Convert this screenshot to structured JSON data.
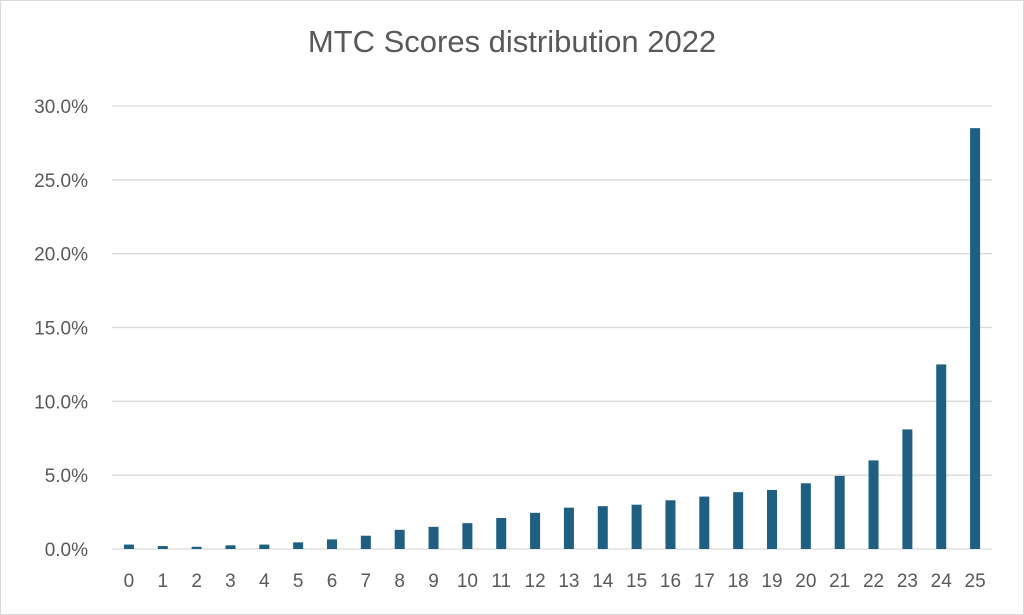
{
  "chart_data": {
    "type": "bar",
    "title": "MTC Scores distribution 2022",
    "xlabel": "",
    "ylabel": "",
    "categories": [
      "0",
      "1",
      "2",
      "3",
      "4",
      "5",
      "6",
      "7",
      "8",
      "9",
      "10",
      "11",
      "12",
      "13",
      "14",
      "15",
      "16",
      "17",
      "18",
      "19",
      "20",
      "21",
      "22",
      "23",
      "24",
      "25"
    ],
    "series": [
      {
        "values": [
          0.3,
          0.2,
          0.15,
          0.25,
          0.3,
          0.45,
          0.65,
          0.9,
          1.3,
          1.5,
          1.75,
          2.1,
          2.45,
          2.8,
          2.9,
          3.0,
          3.3,
          3.55,
          3.85,
          4.0,
          4.45,
          4.95,
          6.0,
          8.1,
          12.5,
          28.5
        ],
        "color": "#1f5f82"
      }
    ],
    "ylim": [
      0,
      30
    ],
    "yticks": [
      0,
      5,
      10,
      15,
      20,
      25,
      30
    ],
    "ytick_labels": [
      "0.0%",
      "5.0%",
      "10.0%",
      "15.0%",
      "20.0%",
      "25.0%",
      "30.0%"
    ],
    "grid": true,
    "gridline_color": "#d9d9d9",
    "axis_line_color": "#d9d9d9"
  }
}
